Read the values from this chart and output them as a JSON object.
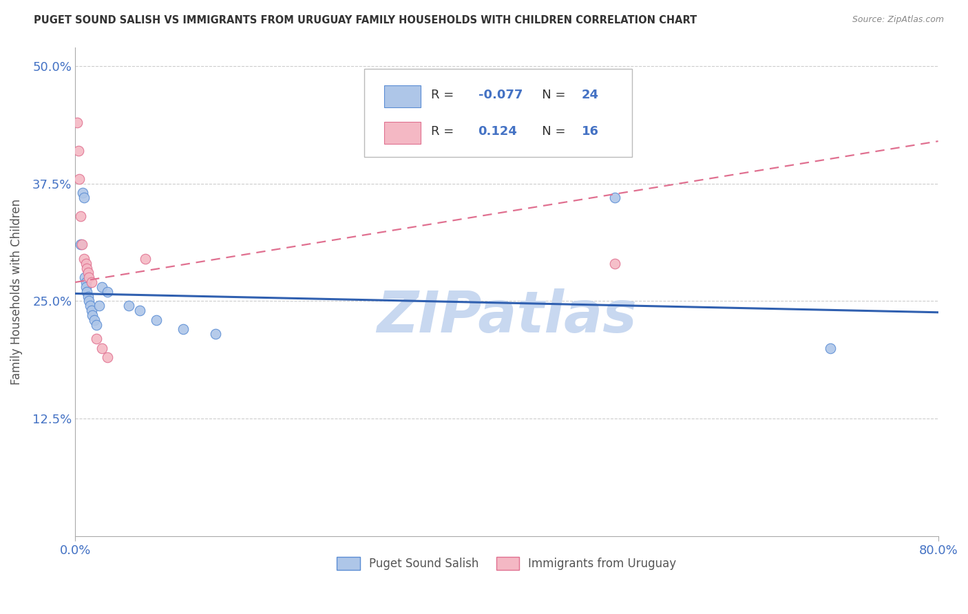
{
  "title": "PUGET SOUND SALISH VS IMMIGRANTS FROM URUGUAY FAMILY HOUSEHOLDS WITH CHILDREN CORRELATION CHART",
  "source": "Source: ZipAtlas.com",
  "ylabel": "Family Households with Children",
  "xlim": [
    0.0,
    80.0
  ],
  "ylim": [
    0.0,
    52.0
  ],
  "yticks": [
    12.5,
    25.0,
    37.5,
    50.0
  ],
  "ytick_labels": [
    "12.5%",
    "25.0%",
    "37.5%",
    "50.0%"
  ],
  "xtick_vals": [
    0.0,
    80.0
  ],
  "xtick_labels": [
    "0.0%",
    "80.0%"
  ],
  "watermark": "ZIPatlas",
  "blue_face_color": "#aec6e8",
  "blue_edge_color": "#5b8dd4",
  "pink_face_color": "#f4b8c4",
  "pink_edge_color": "#e07090",
  "blue_line_color": "#3060b0",
  "pink_line_color": "#e07090",
  "blue_scatter_x": [
    0.5,
    0.7,
    0.8,
    0.9,
    1.0,
    1.0,
    1.1,
    1.2,
    1.3,
    1.4,
    1.5,
    1.6,
    1.8,
    2.0,
    2.5,
    3.0,
    5.0,
    6.0,
    7.5,
    10.0,
    13.0,
    50.0,
    70.0,
    2.2
  ],
  "blue_scatter_y": [
    31.0,
    36.5,
    36.0,
    27.5,
    27.0,
    26.5,
    26.0,
    25.5,
    25.0,
    24.5,
    24.0,
    23.5,
    23.0,
    22.5,
    26.5,
    26.0,
    24.5,
    24.0,
    23.0,
    22.0,
    21.5,
    36.0,
    20.0,
    24.5
  ],
  "pink_scatter_x": [
    0.2,
    0.3,
    0.5,
    0.8,
    1.0,
    1.1,
    1.2,
    1.3,
    1.5,
    2.0,
    2.5,
    3.0,
    6.5,
    50.0,
    0.4,
    0.6
  ],
  "pink_scatter_y": [
    44.0,
    41.0,
    34.0,
    29.5,
    29.0,
    28.5,
    28.0,
    27.5,
    27.0,
    21.0,
    20.0,
    19.0,
    29.5,
    29.0,
    38.0,
    31.0
  ],
  "blue_R": -0.077,
  "blue_N": 24,
  "pink_R": 0.124,
  "pink_N": 16,
  "blue_line_start_y": 25.8,
  "blue_line_end_y": 23.8,
  "pink_line_start_y": 27.0,
  "pink_line_end_y": 42.0,
  "legend_label_blue": "Puget Sound Salish",
  "legend_label_pink": "Immigrants from Uruguay",
  "title_color": "#333333",
  "axis_label_color": "#555555",
  "grid_color": "#cccccc",
  "tick_label_color": "#4472c4",
  "watermark_color": "#c8d8f0",
  "source_color": "#888888"
}
